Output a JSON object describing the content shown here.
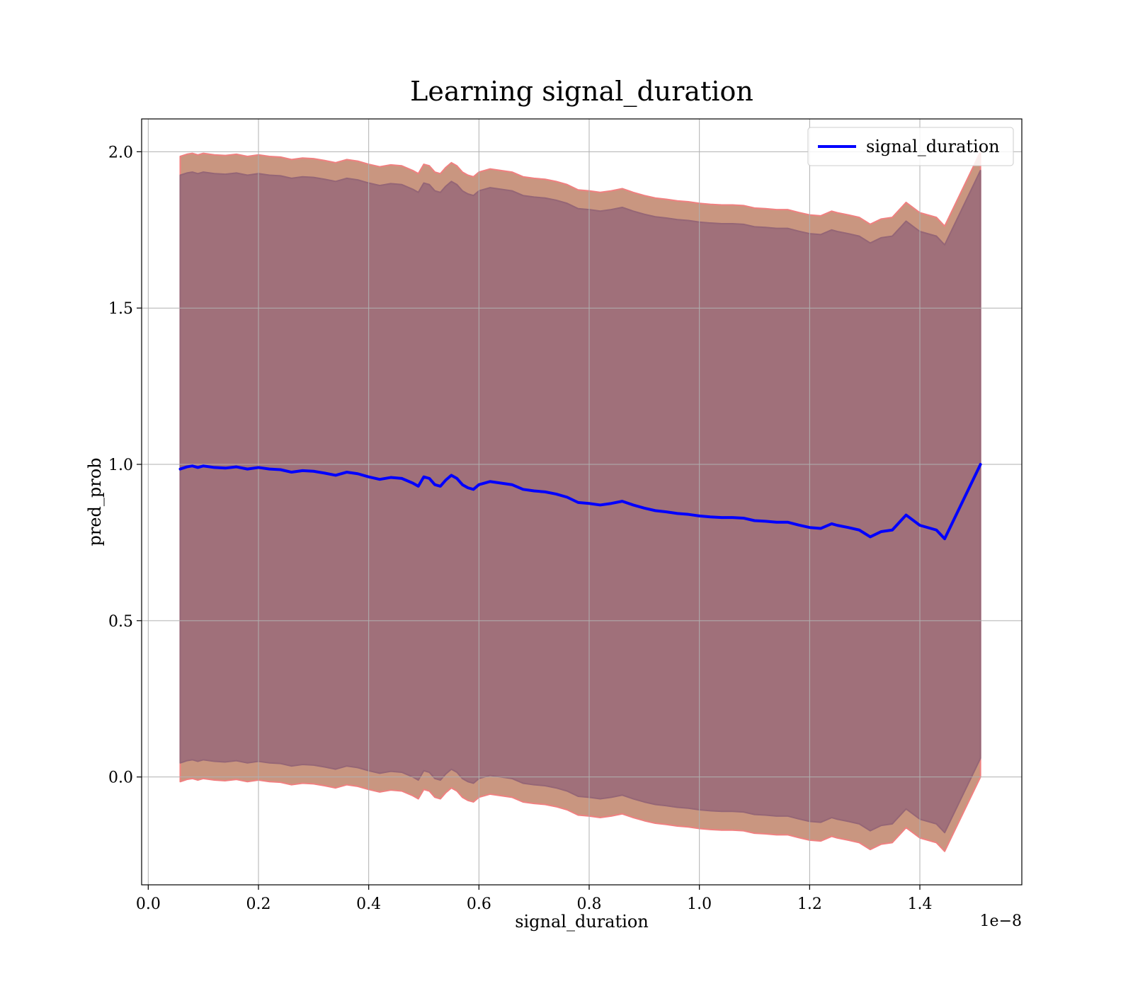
{
  "chart_data": {
    "type": "line",
    "title": "Learning signal_duration",
    "xlabel": "signal_duration",
    "ylabel": "pred_prob",
    "x_offset_label": "1e−8",
    "xlim": [
      -0.012,
      1.585
    ],
    "ylim": [
      -0.345,
      2.105
    ],
    "xticks": [
      0.0,
      0.2,
      0.4,
      0.6,
      0.8,
      1.0,
      1.2,
      1.4
    ],
    "xtick_labels": [
      "0.0",
      "0.2",
      "0.4",
      "0.6",
      "0.8",
      "1.0",
      "1.2",
      "1.4"
    ],
    "yticks": [
      0.0,
      0.5,
      1.0,
      1.5,
      2.0
    ],
    "ytick_labels": [
      "0.0",
      "0.5",
      "1.0",
      "1.5",
      "2.0"
    ],
    "grid": true,
    "legend_position": "top-right",
    "series": [
      {
        "name": "signal_duration",
        "color": "#0000ff",
        "x": [
          0.058,
          0.07,
          0.08,
          0.09,
          0.1,
          0.12,
          0.14,
          0.16,
          0.18,
          0.2,
          0.22,
          0.24,
          0.26,
          0.28,
          0.3,
          0.32,
          0.34,
          0.36,
          0.38,
          0.4,
          0.42,
          0.44,
          0.46,
          0.48,
          0.49,
          0.5,
          0.51,
          0.52,
          0.53,
          0.54,
          0.55,
          0.56,
          0.57,
          0.58,
          0.59,
          0.6,
          0.62,
          0.64,
          0.66,
          0.68,
          0.7,
          0.72,
          0.74,
          0.76,
          0.78,
          0.8,
          0.82,
          0.84,
          0.86,
          0.88,
          0.9,
          0.92,
          0.94,
          0.96,
          0.98,
          1.0,
          1.02,
          1.04,
          1.06,
          1.08,
          1.1,
          1.12,
          1.14,
          1.16,
          1.18,
          1.2,
          1.22,
          1.24,
          1.25,
          1.27,
          1.29,
          1.31,
          1.33,
          1.35,
          1.375,
          1.4,
          1.43,
          1.445,
          1.51
        ],
        "y": [
          0.985,
          0.992,
          0.995,
          0.99,
          0.995,
          0.99,
          0.988,
          0.992,
          0.985,
          0.99,
          0.985,
          0.983,
          0.975,
          0.98,
          0.978,
          0.972,
          0.965,
          0.975,
          0.97,
          0.96,
          0.952,
          0.958,
          0.955,
          0.94,
          0.93,
          0.96,
          0.955,
          0.935,
          0.93,
          0.95,
          0.965,
          0.955,
          0.935,
          0.925,
          0.92,
          0.935,
          0.945,
          0.94,
          0.935,
          0.92,
          0.915,
          0.912,
          0.905,
          0.895,
          0.878,
          0.875,
          0.87,
          0.875,
          0.882,
          0.87,
          0.86,
          0.852,
          0.848,
          0.843,
          0.84,
          0.835,
          0.832,
          0.83,
          0.83,
          0.828,
          0.82,
          0.818,
          0.815,
          0.815,
          0.806,
          0.798,
          0.795,
          0.81,
          0.805,
          0.798,
          0.79,
          0.768,
          0.785,
          0.79,
          0.838,
          0.805,
          0.79,
          0.762,
          1.0
        ]
      }
    ],
    "bands": [
      {
        "fill": "#c99680",
        "edge": "#f08080",
        "offset": 1.0
      },
      {
        "fill": "#a0707a",
        "edge": "#956676",
        "offset": 0.94
      }
    ]
  }
}
